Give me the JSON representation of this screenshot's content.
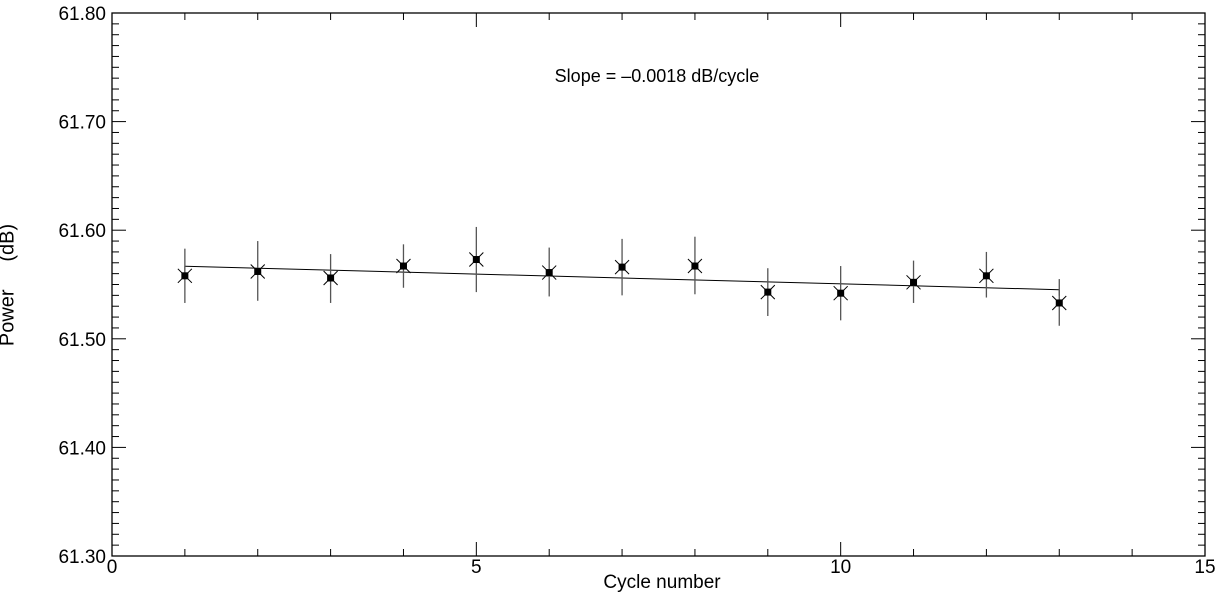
{
  "chart_data": {
    "type": "scatter",
    "title": "",
    "annotation": "Slope = –0.0018 dB/cycle",
    "xlabel": "Cycle number",
    "ylabel_main": "Power",
    "ylabel_unit": "(dB)",
    "xlim": [
      0,
      15
    ],
    "ylim": [
      61.3,
      61.8
    ],
    "x_ticks": [
      0,
      5,
      10,
      15
    ],
    "x_tick_labels": [
      "0",
      "5",
      "10",
      "15"
    ],
    "y_ticks": [
      61.3,
      61.4,
      61.5,
      61.6,
      61.7,
      61.8
    ],
    "y_tick_labels": [
      "61.30",
      "61.40",
      "61.50",
      "61.60",
      "61.70",
      "61.80"
    ],
    "grid": false,
    "points": [
      {
        "x": 1,
        "y": 61.558,
        "err_low": 61.533,
        "err_high": 61.583
      },
      {
        "x": 2,
        "y": 61.562,
        "err_low": 61.535,
        "err_high": 61.59
      },
      {
        "x": 3,
        "y": 61.556,
        "err_low": 61.533,
        "err_high": 61.578
      },
      {
        "x": 4,
        "y": 61.567,
        "err_low": 61.547,
        "err_high": 61.587
      },
      {
        "x": 5,
        "y": 61.573,
        "err_low": 61.543,
        "err_high": 61.603
      },
      {
        "x": 6,
        "y": 61.561,
        "err_low": 61.539,
        "err_high": 61.584
      },
      {
        "x": 7,
        "y": 61.566,
        "err_low": 61.54,
        "err_high": 61.592
      },
      {
        "x": 8,
        "y": 61.567,
        "err_low": 61.541,
        "err_high": 61.594
      },
      {
        "x": 9,
        "y": 61.543,
        "err_low": 61.521,
        "err_high": 61.565
      },
      {
        "x": 10,
        "y": 61.542,
        "err_low": 61.517,
        "err_high": 61.567
      },
      {
        "x": 11,
        "y": 61.552,
        "err_low": 61.533,
        "err_high": 61.572
      },
      {
        "x": 12,
        "y": 61.558,
        "err_low": 61.538,
        "err_high": 61.58
      },
      {
        "x": 13,
        "y": 61.533,
        "err_low": 61.512,
        "err_high": 61.555
      }
    ],
    "fit_line": {
      "x": [
        1,
        13
      ],
      "y": [
        61.5668,
        61.5452
      ]
    },
    "colors": {
      "axis": "#000000",
      "marker": "#000000",
      "errorbar": "#555555",
      "fit": "#000000"
    }
  }
}
